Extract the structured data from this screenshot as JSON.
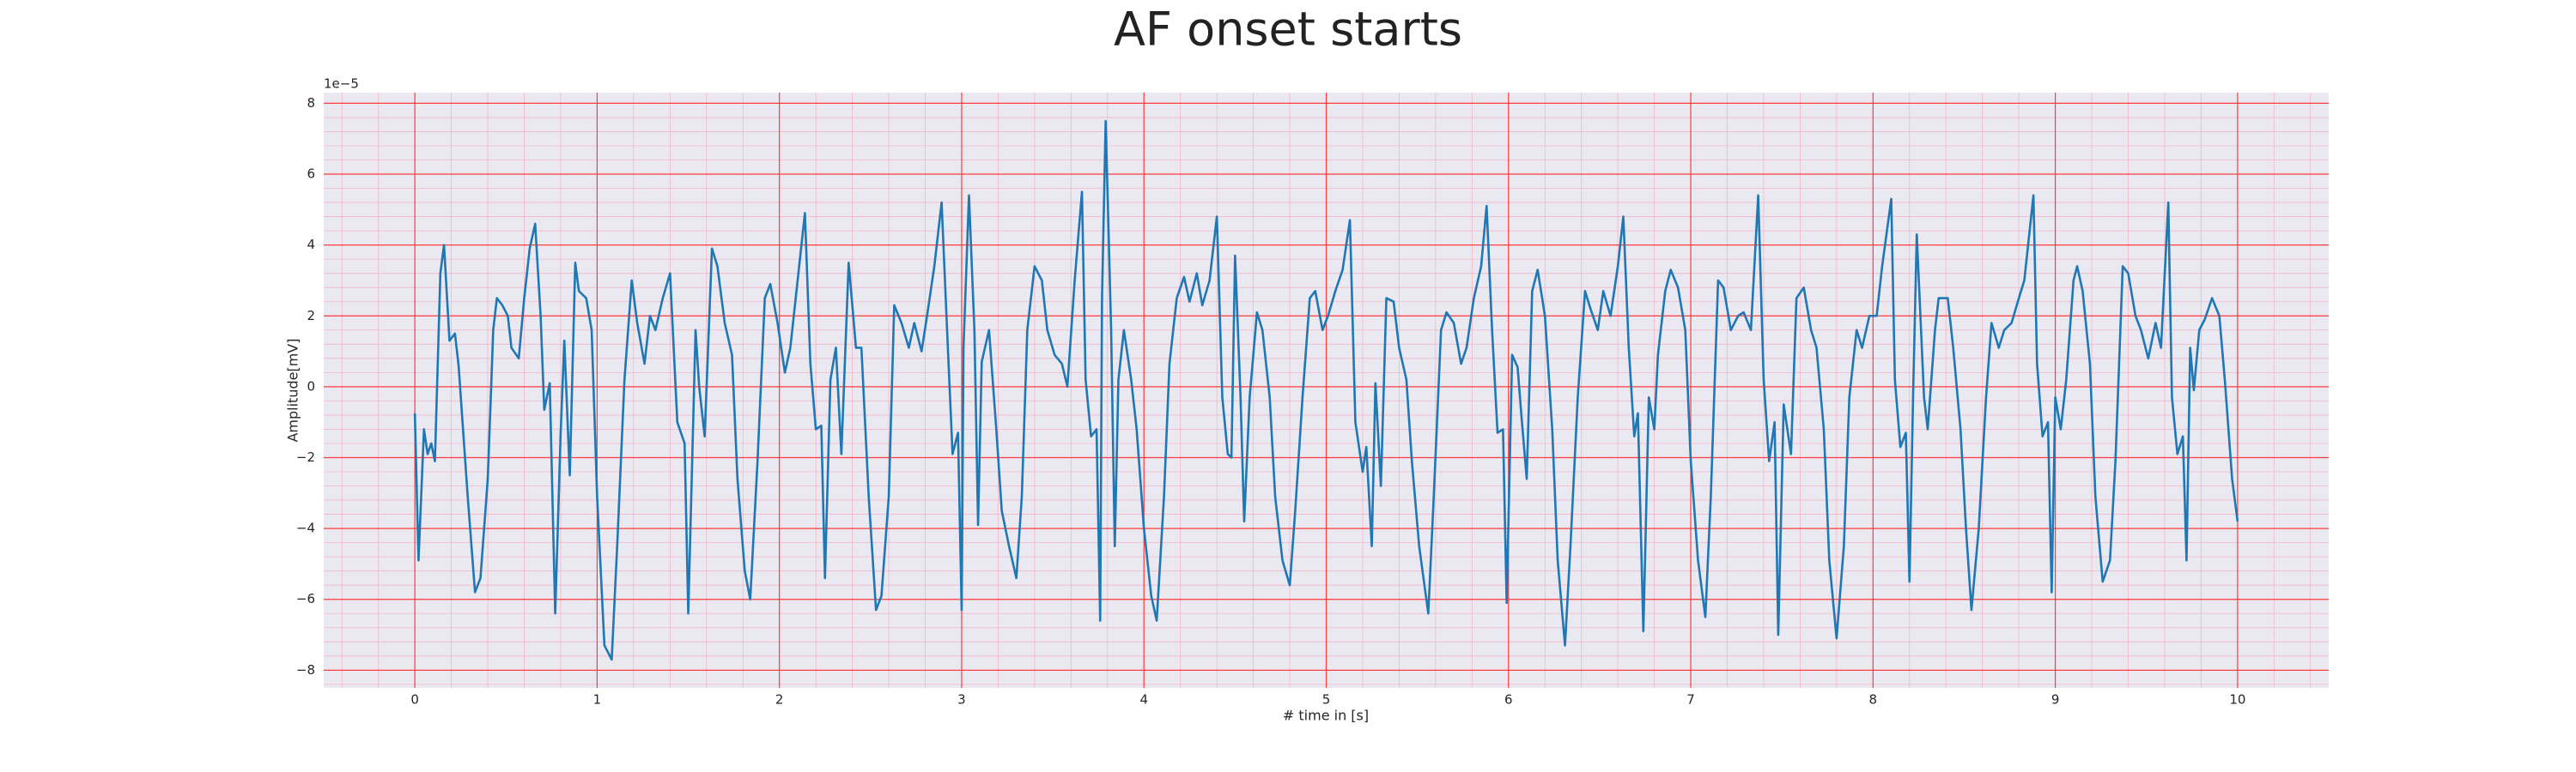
{
  "chart_data": {
    "type": "line",
    "title": "AF onset starts",
    "xlabel": "# time in [s]",
    "ylabel": "Amplitude[mV]",
    "y_offset_text": "1e−5",
    "xlim": [
      -0.5,
      10.5
    ],
    "ylim": [
      -8.5,
      8.3
    ],
    "xticks": [
      0,
      1,
      2,
      3,
      4,
      5,
      6,
      7,
      8,
      9,
      10
    ],
    "yticks": [
      {
        "value": -8,
        "label": "−8"
      },
      {
        "value": -6,
        "label": "−6"
      },
      {
        "value": -4,
        "label": "−4"
      },
      {
        "value": -2,
        "label": "−2"
      },
      0,
      2,
      4,
      6,
      8
    ],
    "grid": true,
    "minor_grid": true,
    "grid_color": "#ff3b3b",
    "minor_grid_color": "#f3b6c6",
    "background": "#eae9f2",
    "x": [
      0,
      0.02,
      0.05,
      0.07,
      0.09,
      0.11,
      0.14,
      0.16,
      0.19,
      0.22,
      0.24,
      0.29,
      0.33,
      0.36,
      0.4,
      0.43,
      0.45,
      0.48,
      0.51,
      0.53,
      0.57,
      0.6,
      0.63,
      0.66,
      0.69,
      0.71,
      0.74,
      0.77,
      0.8,
      0.82,
      0.85,
      0.88,
      0.9,
      0.94,
      0.97,
      1.0,
      1.04,
      1.08,
      1.11,
      1.15,
      1.19,
      1.22,
      1.26,
      1.29,
      1.32,
      1.36,
      1.4,
      1.44,
      1.48,
      1.5,
      1.54,
      1.56,
      1.59,
      1.63,
      1.66,
      1.7,
      1.74,
      1.77,
      1.81,
      1.84,
      1.88,
      1.92,
      1.95,
      1.99,
      2.03,
      2.06,
      2.1,
      2.14,
      2.17,
      2.2,
      2.23,
      2.25,
      2.28,
      2.31,
      2.34,
      2.38,
      2.42,
      2.45,
      2.49,
      2.53,
      2.56,
      2.6,
      2.63,
      2.67,
      2.71,
      2.74,
      2.78,
      2.81,
      2.85,
      2.89,
      2.92,
      2.95,
      2.98,
      3.0,
      3.01,
      3.04,
      3.07,
      3.09,
      3.11,
      3.15,
      3.19,
      3.22,
      3.26,
      3.3,
      3.33,
      3.36,
      3.4,
      3.44,
      3.47,
      3.51,
      3.55,
      3.58,
      3.62,
      3.66,
      3.68,
      3.71,
      3.74,
      3.76,
      3.77,
      3.79,
      3.82,
      3.84,
      3.86,
      3.89,
      3.93,
      3.96,
      4.0,
      4.04,
      4.07,
      4.11,
      4.14,
      4.18,
      4.22,
      4.25,
      4.29,
      4.32,
      4.36,
      4.4,
      4.43,
      4.46,
      4.48,
      4.5,
      4.53,
      4.55,
      4.58,
      4.62,
      4.65,
      4.69,
      4.72,
      4.76,
      4.8,
      4.83,
      4.87,
      4.91,
      4.94,
      4.98,
      5.01,
      5.05,
      5.09,
      5.13,
      5.16,
      5.2,
      5.22,
      5.25,
      5.27,
      5.3,
      5.33,
      5.37,
      5.4,
      5.44,
      5.47,
      5.51,
      5.56,
      5.59,
      5.63,
      5.66,
      5.7,
      5.74,
      5.77,
      5.81,
      5.85,
      5.88,
      5.91,
      5.94,
      5.97,
      5.99,
      6.02,
      6.05,
      6.07,
      6.1,
      6.13,
      6.16,
      6.2,
      6.24,
      6.27,
      6.31,
      6.34,
      6.38,
      6.42,
      6.45,
      6.49,
      6.52,
      6.56,
      6.6,
      6.63,
      6.66,
      6.69,
      6.71,
      6.74,
      6.77,
      6.8,
      6.82,
      6.86,
      6.89,
      6.93,
      6.97,
      7.0,
      7.04,
      7.08,
      7.11,
      7.15,
      7.18,
      7.22,
      7.26,
      7.29,
      7.33,
      7.37,
      7.4,
      7.43,
      7.46,
      7.48,
      7.51,
      7.55,
      7.58,
      7.62,
      7.66,
      7.69,
      7.73,
      7.76,
      7.8,
      7.84,
      7.87,
      7.91,
      7.94,
      7.98,
      8.02,
      8.05,
      8.1,
      8.12,
      8.15,
      8.18,
      8.2,
      8.22,
      8.24,
      8.28,
      8.3,
      8.34,
      8.36,
      8.41,
      8.44,
      8.48,
      8.51,
      8.54,
      8.58,
      8.62,
      8.65,
      8.69,
      8.72,
      8.76,
      8.8,
      8.83,
      8.88,
      8.9,
      8.93,
      8.96,
      8.98,
      9.0,
      9.03,
      9.06,
      9.1,
      9.12,
      9.15,
      9.19,
      9.22,
      9.26,
      9.3,
      9.33,
      9.37,
      9.4,
      9.44,
      9.47,
      9.51,
      9.55,
      9.58,
      9.62,
      9.64,
      9.67,
      9.7,
      9.72,
      9.74,
      9.76,
      9.79,
      9.82,
      9.86,
      9.9,
      9.93,
      9.97,
      10.0
    ],
    "series": [
      {
        "color": "#1f77b4",
        "values": [
          -0.75,
          -4.9,
          -1.2,
          -1.9,
          -1.6,
          -2.1,
          3.2,
          4.0,
          1.3,
          1.5,
          0.6,
          -3.1,
          -5.8,
          -5.4,
          -2.6,
          1.6,
          2.5,
          2.3,
          2.0,
          1.1,
          0.8,
          2.5,
          3.9,
          4.6,
          2.0,
          -0.65,
          0.1,
          -6.4,
          -1.3,
          1.3,
          -2.5,
          3.5,
          2.7,
          2.5,
          1.6,
          -3.1,
          -7.3,
          -7.7,
          -4.5,
          0.2,
          3.0,
          1.8,
          0.65,
          2.0,
          1.6,
          2.5,
          3.2,
          -1.0,
          -1.6,
          -6.4,
          1.6,
          0,
          -1.4,
          3.9,
          3.4,
          1.8,
          0.9,
          -2.6,
          -5.2,
          -6.0,
          -2.1,
          2.5,
          2.9,
          1.8,
          0.4,
          1.1,
          3.0,
          4.9,
          0.65,
          -1.2,
          -1.1,
          -5.4,
          0.2,
          1.1,
          -1.9,
          3.5,
          1.1,
          1.1,
          -3.1,
          -6.3,
          -5.9,
          -3.1,
          2.3,
          1.8,
          1.1,
          1.8,
          1.0,
          2.0,
          3.4,
          5.2,
          1.6,
          -1.9,
          -1.3,
          -6.3,
          1.1,
          5.4,
          1.6,
          -3.9,
          0.7,
          1.6,
          -1.2,
          -3.5,
          -4.5,
          -5.4,
          -3.1,
          1.6,
          3.4,
          3.0,
          1.6,
          0.9,
          0.65,
          0,
          3.0,
          5.5,
          0.2,
          -1.4,
          -1.2,
          -6.6,
          2.5,
          7.5,
          1.6,
          -4.5,
          0.2,
          1.6,
          0.2,
          -1.2,
          -4.0,
          -5.9,
          -6.6,
          -3.1,
          0.65,
          2.5,
          3.1,
          2.4,
          3.2,
          2.3,
          3.0,
          4.8,
          -0.3,
          -1.9,
          -2.0,
          3.7,
          -0.3,
          -3.8,
          -0.3,
          2.1,
          1.6,
          -0.3,
          -3.1,
          -4.9,
          -5.6,
          -3.5,
          -0.3,
          2.5,
          2.7,
          1.6,
          2.0,
          2.7,
          3.3,
          4.7,
          -1.0,
          -2.4,
          -1.7,
          -4.5,
          0.1,
          -2.8,
          2.5,
          2.4,
          1.1,
          0.2,
          -2.1,
          -4.5,
          -6.4,
          -3.1,
          1.6,
          2.1,
          1.8,
          0.65,
          1.1,
          2.5,
          3.4,
          5.1,
          1.6,
          -1.3,
          -1.2,
          -6.1,
          0.9,
          0.55,
          -0.75,
          -2.6,
          2.7,
          3.3,
          2.0,
          -1.2,
          -4.9,
          -7.3,
          -4.5,
          -0.3,
          2.7,
          2.2,
          1.6,
          2.7,
          2.0,
          3.4,
          4.8,
          1.1,
          -1.4,
          -0.75,
          -6.9,
          -0.3,
          -1.2,
          0.9,
          2.7,
          3.3,
          2.8,
          1.6,
          -2.1,
          -4.9,
          -6.5,
          -3.1,
          3.0,
          2.8,
          1.6,
          2.0,
          2.1,
          1.6,
          5.4,
          0.2,
          -2.1,
          -1.0,
          -7.0,
          -0.5,
          -1.9,
          2.5,
          2.8,
          1.6,
          1.1,
          -1.2,
          -4.9,
          -7.1,
          -4.5,
          -0.3,
          1.6,
          1.1,
          2.0,
          2.0,
          3.4,
          5.3,
          0.2,
          -1.7,
          -1.3,
          -5.5,
          -0.2,
          4.3,
          -0.3,
          -1.2,
          1.6,
          2.5,
          2.5,
          1.1,
          -1.2,
          -4.0,
          -6.3,
          -4.0,
          -0.3,
          1.8,
          1.1,
          1.6,
          1.8,
          2.5,
          3.0,
          5.4,
          0.65,
          -1.4,
          -1.0,
          -5.8,
          -0.3,
          -1.2,
          0.2,
          3.0,
          3.4,
          2.7,
          0.65,
          -3.1,
          -5.5,
          -4.9,
          -2.1,
          3.4,
          3.2,
          2.0,
          1.6,
          0.8,
          1.8,
          1.1,
          5.2,
          -0.3,
          -1.9,
          -1.4,
          -4.9,
          1.1,
          -0.1,
          1.6,
          1.9,
          2.5,
          2.0,
          0.2,
          -2.6,
          -3.8
        ]
      }
    ]
  }
}
